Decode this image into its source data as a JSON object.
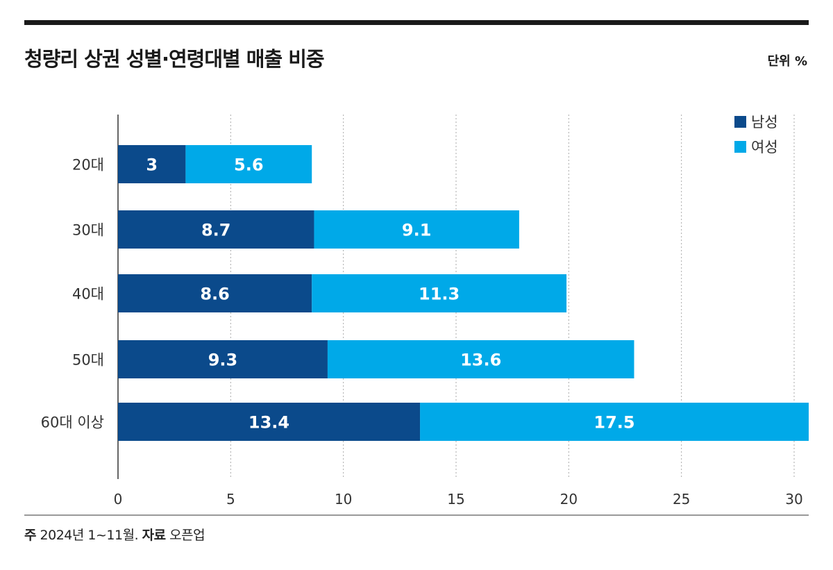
{
  "title": "청량리 상권 성별·연령대별 매출 비중",
  "unit": "단위 %",
  "footnote": {
    "note_label": "주",
    "note_text": "2024년 1~11월.",
    "source_label": "자료",
    "source_text": "오픈업"
  },
  "chart_data": {
    "type": "bar",
    "orientation": "horizontal",
    "stacked": true,
    "title": "청량리 상권 성별·연령대별 매출 비중",
    "categories": [
      "20대",
      "30대",
      "40대",
      "50대",
      "60대 이상"
    ],
    "series": [
      {
        "name": "남성",
        "color": "#0b4a8b",
        "values": [
          3,
          8.7,
          8.6,
          9.3,
          13.4
        ]
      },
      {
        "name": "여성",
        "color": "#00a9e8",
        "values": [
          5.6,
          9.1,
          11.3,
          13.6,
          17.5
        ]
      }
    ],
    "xlim": [
      0,
      30
    ],
    "xticks": [
      0,
      5,
      10,
      15,
      20,
      25,
      30
    ],
    "grid": "vertical dotted",
    "legend": "top-right",
    "data_labels": true
  }
}
